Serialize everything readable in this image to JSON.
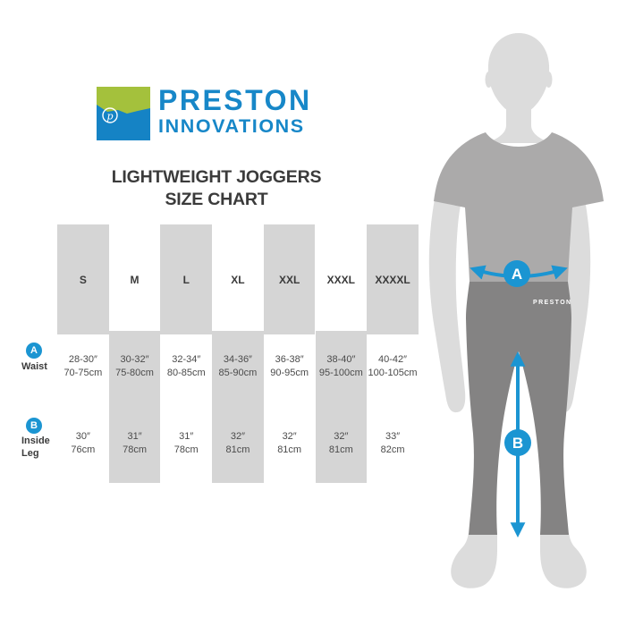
{
  "logo": {
    "line1": "PRESTON",
    "line2": "INNOVATIONS",
    "emblem": "circled-script-p"
  },
  "title": {
    "line1": "LIGHTWEIGHT JOGGERS",
    "line2": "SIZE CHART"
  },
  "table": {
    "sizes": [
      "S",
      "M",
      "L",
      "XL",
      "XXL",
      "XXXL",
      "XXXXL"
    ],
    "rows": [
      {
        "marker": "A",
        "label_lines": [
          "Waist"
        ],
        "values": [
          [
            "28-30″",
            "70-75cm"
          ],
          [
            "30-32″",
            "75-80cm"
          ],
          [
            "32-34″",
            "80-85cm"
          ],
          [
            "34-36″",
            "85-90cm"
          ],
          [
            "36-38″",
            "90-95cm"
          ],
          [
            "38-40″",
            "95-100cm"
          ],
          [
            "40-42″",
            "100-105cm"
          ]
        ]
      },
      {
        "marker": "B",
        "label_lines": [
          "Inside",
          "Leg"
        ],
        "values": [
          [
            "30″",
            "76cm"
          ],
          [
            "31″",
            "78cm"
          ],
          [
            "31″",
            "78cm"
          ],
          [
            "32″",
            "81cm"
          ],
          [
            "32″",
            "81cm"
          ],
          [
            "32″",
            "81cm"
          ],
          [
            "33″",
            "82cm"
          ]
        ]
      }
    ]
  },
  "figure": {
    "waist_marker": "A",
    "leg_marker": "B",
    "brand_label": "PRESTON"
  },
  "colors": {
    "accent_blue": "#1b95d2",
    "brand_text_blue": "#1787c8",
    "logo_green": "#a4c13c",
    "logo_blue": "#1583c5",
    "shirt_gray": "#abaaaa",
    "joggers_gray": "#848383",
    "body_gray": "#dcdcdc",
    "stripe_gray": "#d5d5d5"
  }
}
